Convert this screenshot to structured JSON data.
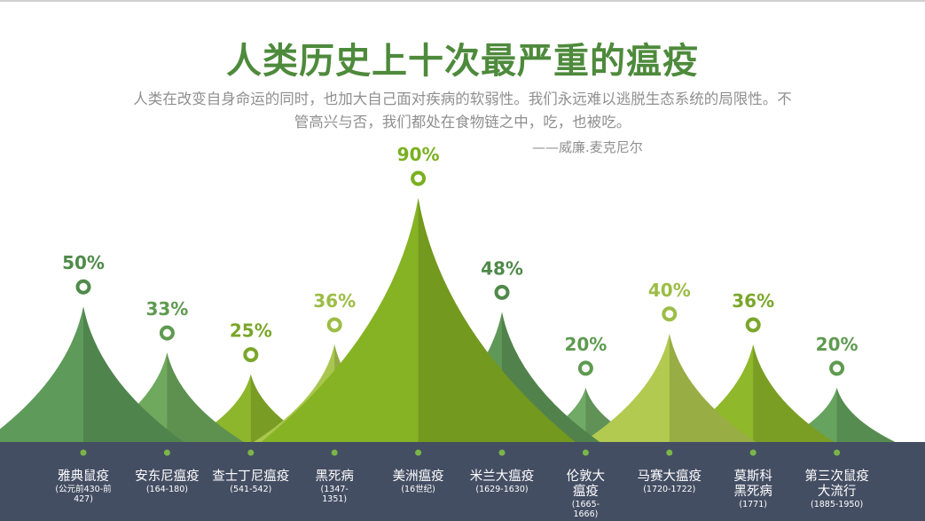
{
  "title": "人类历史上十次最严重的瘟疫",
  "quote": {
    "text": "人类在改变自身命运的同时，也加大自己面对疾病的软弱性。我们永远难以逃脱生态系统的局限性。不管高兴与否，我们都处在食物链之中，吃，也被吃。",
    "attribution": "——威廉.麦克尼尔"
  },
  "colors": {
    "title": "#4e8a3c",
    "band": "#444e63",
    "label_text": "#ffffff",
    "marker": "#7ab648"
  },
  "chart_data": {
    "type": "area",
    "value_format": "percent",
    "ylim": [
      0,
      100
    ],
    "categories": [
      {
        "name": [
          "雅典鼠疫"
        ],
        "period": [
          "(公元前430-前",
          "427)"
        ],
        "value": 50,
        "color": "#5e9a5a",
        "label_color": "#4f8a4a"
      },
      {
        "name": [
          "安东尼瘟疫"
        ],
        "period": [
          "(164-180)"
        ],
        "value": 33,
        "color": "#6ea95e",
        "label_color": "#5e9a50"
      },
      {
        "name": [
          "查士丁尼瘟疫"
        ],
        "period": [
          "(541-542)"
        ],
        "value": 25,
        "color": "#8db62c",
        "label_color": "#7aa62a"
      },
      {
        "name": [
          "黑死病"
        ],
        "period": [
          "(1347-",
          "1351)"
        ],
        "value": 36,
        "color": "#a9c64e",
        "label_color": "#9cbd45"
      },
      {
        "name": [
          "美洲瘟疫"
        ],
        "period": [
          "(16世纪)"
        ],
        "value": 90,
        "color": "#86b324",
        "label_color": "#7ab020"
      },
      {
        "name": [
          "米兰大瘟疫"
        ],
        "period": [
          "(1629-1630)"
        ],
        "value": 48,
        "color": "#5f9858",
        "label_color": "#4f8a4a"
      },
      {
        "name": [
          "伦敦大",
          "瘟疫"
        ],
        "period": [
          "(1665-",
          "1666)"
        ],
        "value": 20,
        "color": "#70aa66",
        "label_color": "#5e9a50"
      },
      {
        "name": [
          "马赛大瘟疫"
        ],
        "period": [
          "(1720-1722)"
        ],
        "value": 40,
        "color": "#b2ca50",
        "label_color": "#9cbd45"
      },
      {
        "name": [
          "莫斯科",
          "黑死病"
        ],
        "period": [
          "(1771)"
        ],
        "value": 36,
        "color": "#8fb82a",
        "label_color": "#7aa62a"
      },
      {
        "name": [
          "第三次鼠疫",
          "大流行"
        ],
        "period": [
          "(1885-1950)"
        ],
        "value": 20,
        "color": "#66a35e",
        "label_color": "#5e9a50"
      }
    ]
  }
}
